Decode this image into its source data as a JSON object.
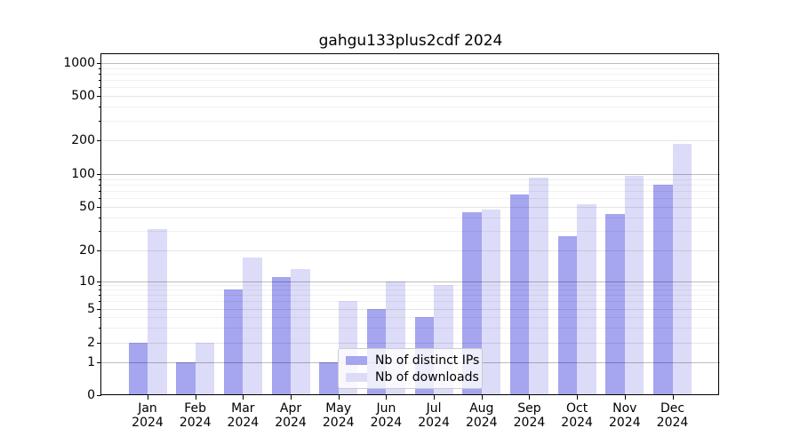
{
  "title": "gahgu133plus2cdf 2024",
  "chart_data": {
    "type": "bar",
    "title": "gahgu133plus2cdf 2024",
    "categories": [
      "Jan 2024",
      "Feb 2024",
      "Mar 2024",
      "Apr 2024",
      "May 2024",
      "Jun 2024",
      "Jul 2024",
      "Aug 2024",
      "Sep 2024",
      "Oct 2024",
      "Nov 2024",
      "Dec 2024"
    ],
    "series": [
      {
        "name": "Nb of distinct IPs",
        "color": "#a5a5f0",
        "values": [
          2,
          1,
          8,
          11,
          1,
          5,
          4,
          44,
          65,
          27,
          43,
          79
        ]
      },
      {
        "name": "Nb of downloads",
        "color": "#dcdcf8",
        "values": [
          31,
          2,
          17,
          13,
          6,
          10,
          9,
          47,
          93,
          52,
          96,
          183
        ]
      }
    ],
    "xlabel": "",
    "ylabel": "",
    "yscale": "symlog",
    "yticks": [
      0,
      1,
      2,
      5,
      10,
      20,
      50,
      100,
      200,
      500,
      1000
    ],
    "ylim": [
      0,
      1200
    ],
    "grid": true,
    "legend_position": "lower center"
  }
}
